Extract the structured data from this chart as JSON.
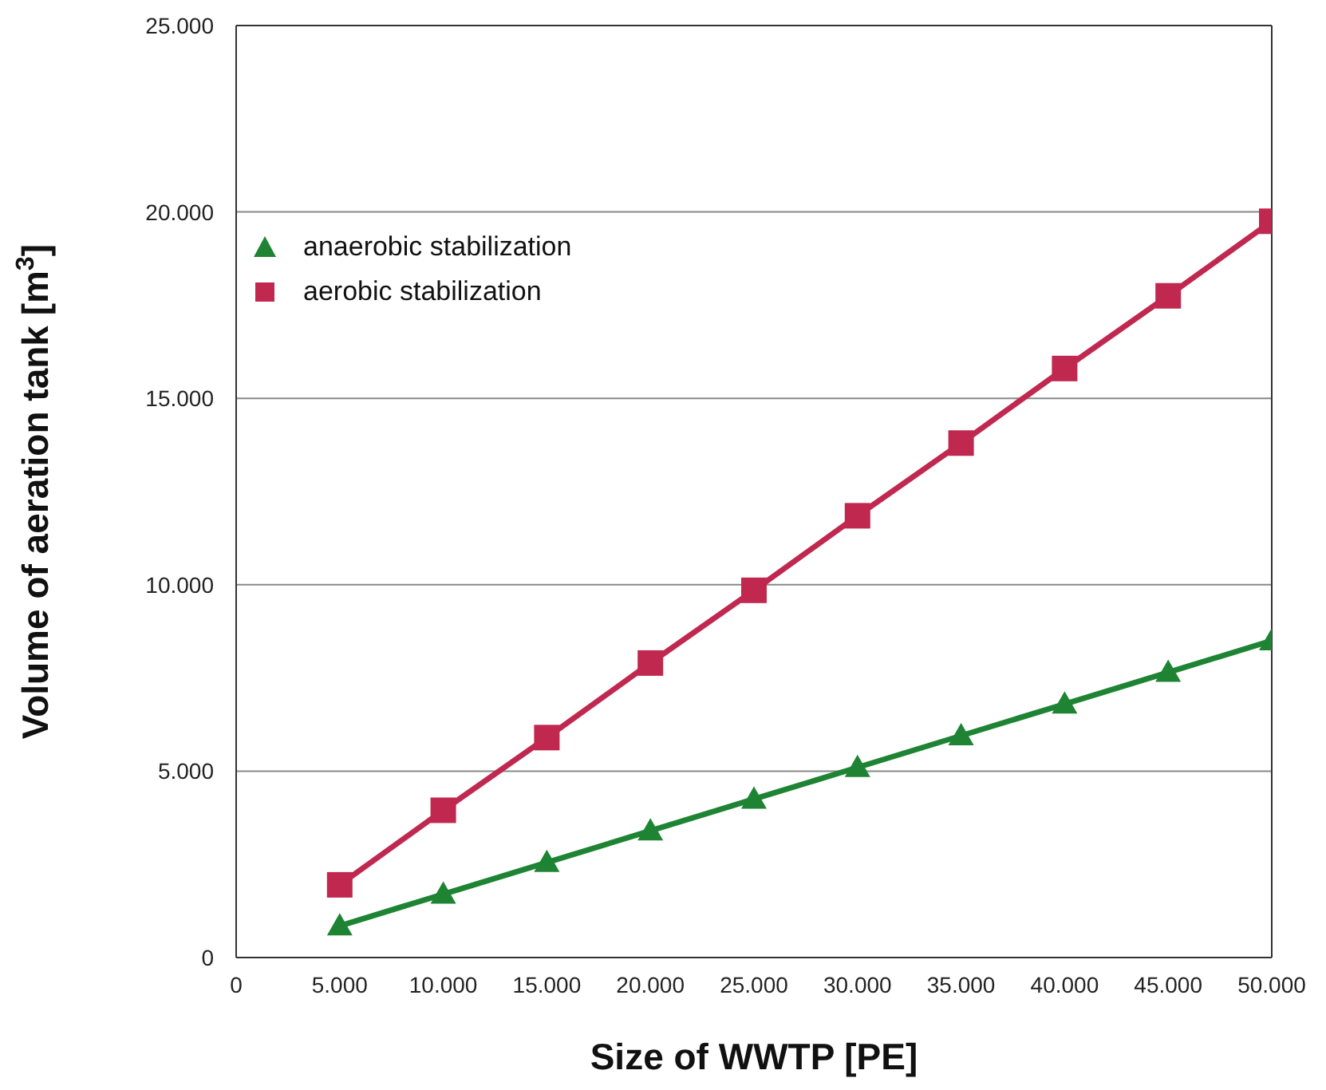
{
  "chart_data": {
    "type": "line",
    "xlabel": "Size of WWTP [PE]",
    "ylabel": "Volume of aeration tank [m$^{3}$]",
    "x": [
      5000,
      10000,
      15000,
      20000,
      25000,
      30000,
      35000,
      40000,
      45000,
      50000
    ],
    "series": [
      {
        "name": "anaerobic stabilization",
        "color": "#1e8434",
        "marker": "triangle",
        "values": [
          850,
          1700,
          2550,
          3400,
          4250,
          5100,
          5950,
          6800,
          7650,
          8500
        ]
      },
      {
        "name": "aerobic stabilization",
        "color": "#c0284f",
        "marker": "square",
        "values": [
          1950,
          3950,
          5900,
          7900,
          9850,
          11850,
          13800,
          15800,
          17750,
          19750
        ]
      }
    ],
    "xlim": [
      0,
      50000
    ],
    "xticks": [
      0,
      {
        "value": 5000,
        "label": "5.000"
      },
      {
        "value": 10000,
        "label": "10.000"
      },
      {
        "value": 15000,
        "label": "15.000"
      },
      {
        "value": 20000,
        "label": "20.000"
      },
      {
        "value": 25000,
        "label": "25.000"
      },
      {
        "value": 30000,
        "label": "30.000"
      },
      {
        "value": 35000,
        "label": "35.000"
      },
      {
        "value": 40000,
        "label": "40.000"
      },
      {
        "value": 45000,
        "label": "45.000"
      },
      {
        "value": 50000,
        "label": "50.000"
      }
    ],
    "ylim": [
      0,
      25000
    ],
    "yticks": [
      0,
      {
        "value": 5000,
        "label": "5.000"
      },
      {
        "value": 10000,
        "label": "10.000"
      },
      {
        "value": 15000,
        "label": "15.000"
      },
      {
        "value": 20000,
        "label": "20.000"
      },
      {
        "value": 25000,
        "label": "25.000"
      }
    ],
    "grid": "y",
    "legend": "top left",
    "line_style": "solid"
  }
}
